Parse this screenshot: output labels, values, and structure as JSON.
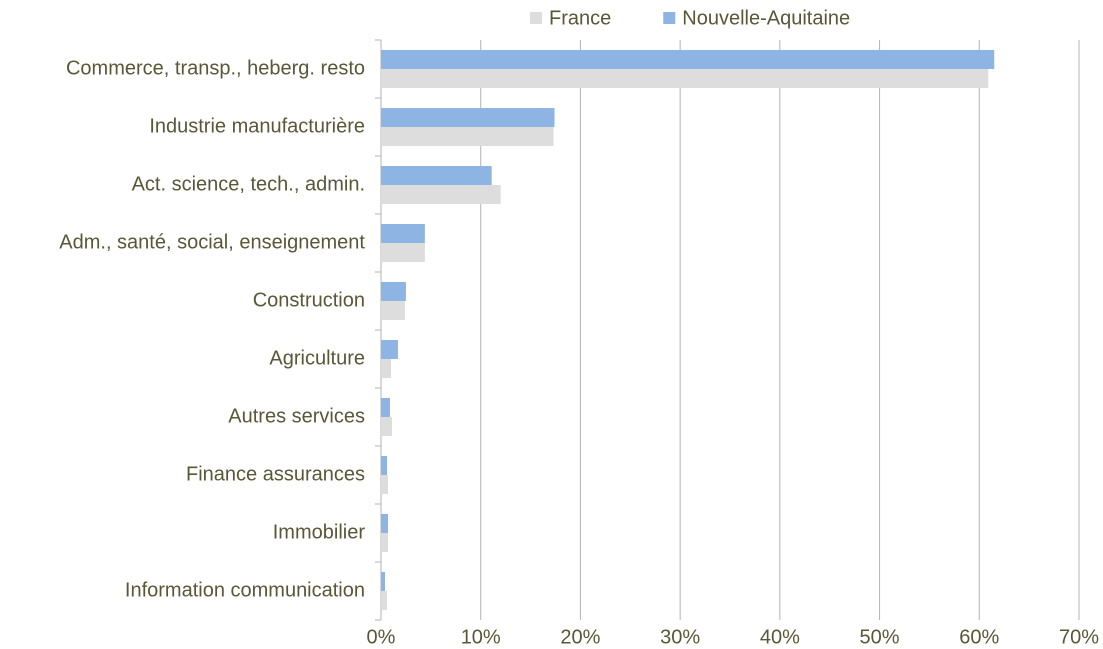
{
  "chart_data": {
    "type": "barh",
    "categories": [
      "Commerce, transp., heberg. resto",
      "Industrie manufacturière",
      "Act. science, tech., admin.",
      "Adm., santé, social, enseignement",
      "Construction",
      "Agriculture",
      "Autres services",
      "Finance assurances",
      "Immobilier",
      "Information communication"
    ],
    "series": [
      {
        "name": "France",
        "color": "#dddddd",
        "values": [
          60.9,
          17.3,
          12.0,
          4.4,
          2.4,
          1.0,
          1.1,
          0.7,
          0.7,
          0.6
        ]
      },
      {
        "name": "Nouvelle-Aquitaine",
        "color": "#8eb4e3",
        "values": [
          61.5,
          17.4,
          11.1,
          4.4,
          2.5,
          1.7,
          0.9,
          0.6,
          0.7,
          0.4
        ]
      }
    ],
    "xlim": [
      0,
      70
    ],
    "xticks": [
      {
        "value": 0,
        "label": "0%"
      },
      {
        "value": 10,
        "label": "10%"
      },
      {
        "value": 20,
        "label": "20%"
      },
      {
        "value": 30,
        "label": "30%"
      },
      {
        "value": 40,
        "label": "40%"
      },
      {
        "value": 50,
        "label": "50%"
      },
      {
        "value": 60,
        "label": "60%"
      },
      {
        "value": 70,
        "label": "70%"
      }
    ],
    "grid": true,
    "legend": "top"
  }
}
